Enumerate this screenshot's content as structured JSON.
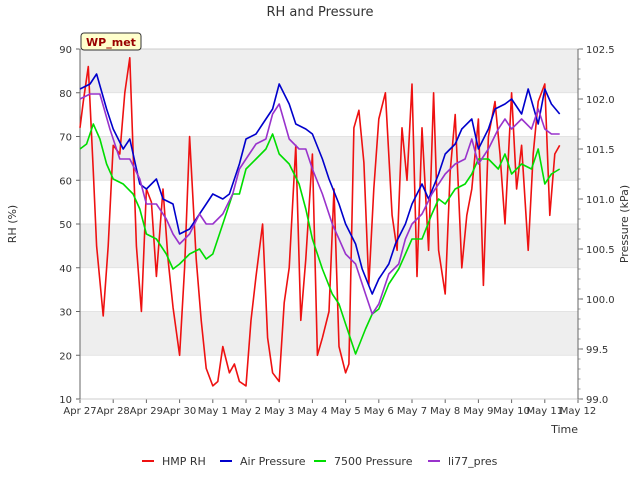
{
  "chart_data": {
    "type": "line",
    "title": "RH and Pressure",
    "xlabel": "Time",
    "ylabel": "RH (%)",
    "y2label": "Pressure (kPa)",
    "station_label": "WP_met",
    "x_ticks": [
      "Apr 27",
      "Apr 28",
      "Apr 29",
      "Apr 30",
      "May 1",
      "May 2",
      "May 3",
      "May 4",
      "May 5",
      "May 6",
      "May 7",
      "May 8",
      "May 9",
      "May 10",
      "May 11",
      "May 12"
    ],
    "xlim": [
      0,
      15
    ],
    "ylim": [
      10,
      90
    ],
    "y_ticks": [
      10,
      20,
      30,
      40,
      50,
      60,
      70,
      80,
      90
    ],
    "y2lim": [
      99.0,
      102.5
    ],
    "y2_ticks": [
      "99.0",
      "99.5",
      "100.0",
      "100.5",
      "101.0",
      "101.5",
      "102.0",
      "102.5"
    ],
    "grid": "horizontal bands",
    "legend_position": "bottom",
    "series": [
      {
        "name": "HMP RH",
        "axis": "left",
        "color": "#ee1111",
        "x": [
          0.0,
          0.1,
          0.25,
          0.4,
          0.5,
          0.7,
          0.85,
          1.0,
          1.2,
          1.35,
          1.5,
          1.7,
          1.85,
          2.0,
          2.15,
          2.3,
          2.5,
          2.65,
          2.8,
          3.0,
          3.15,
          3.3,
          3.5,
          3.65,
          3.8,
          4.0,
          4.15,
          4.3,
          4.5,
          4.65,
          4.8,
          5.0,
          5.15,
          5.3,
          5.5,
          5.65,
          5.8,
          6.0,
          6.15,
          6.3,
          6.5,
          6.65,
          6.8,
          7.0,
          7.15,
          7.3,
          7.5,
          7.65,
          7.8,
          8.0,
          8.1,
          8.25,
          8.4,
          8.55,
          8.7,
          8.85,
          9.0,
          9.2,
          9.4,
          9.55,
          9.7,
          9.85,
          10.0,
          10.15,
          10.3,
          10.5,
          10.65,
          10.8,
          11.0,
          11.15,
          11.3,
          11.5,
          11.65,
          11.8,
          12.0,
          12.15,
          12.3,
          12.5,
          12.65,
          12.8,
          13.0,
          13.15,
          13.3,
          13.5,
          13.65,
          13.8,
          14.0,
          14.15,
          14.3,
          14.45
        ],
        "y": [
          72,
          78,
          86,
          62,
          45,
          29,
          45,
          68,
          66,
          80,
          88,
          45,
          30,
          58,
          55,
          38,
          58,
          42,
          31,
          20,
          40,
          70,
          42,
          28,
          17,
          13,
          14,
          22,
          16,
          18,
          14,
          13,
          28,
          38,
          50,
          24,
          16,
          14,
          32,
          40,
          68,
          28,
          42,
          66,
          20,
          24,
          30,
          58,
          22,
          16,
          18,
          72,
          76,
          64,
          36,
          58,
          74,
          80,
          52,
          44,
          72,
          60,
          82,
          38,
          72,
          44,
          80,
          44,
          34,
          62,
          75,
          40,
          52,
          58,
          74,
          36,
          70,
          78,
          66,
          50,
          80,
          58,
          68,
          44,
          66,
          78,
          82,
          52,
          66,
          68
        ]
      },
      {
        "name": "Air Pressure",
        "axis": "right",
        "color": "#0000cc",
        "x": [
          0.0,
          0.3,
          0.5,
          0.8,
          1.0,
          1.3,
          1.5,
          1.8,
          2.0,
          2.3,
          2.5,
          2.8,
          3.0,
          3.3,
          3.5,
          3.8,
          4.0,
          4.3,
          4.5,
          4.8,
          5.0,
          5.3,
          5.5,
          5.8,
          6.0,
          6.3,
          6.5,
          6.8,
          7.0,
          7.3,
          7.5,
          7.8,
          8.0,
          8.3,
          8.5,
          8.8,
          9.0,
          9.3,
          9.5,
          9.8,
          10.0,
          10.3,
          10.5,
          10.8,
          11.0,
          11.3,
          11.5,
          11.8,
          12.0,
          12.3,
          12.5,
          12.8,
          13.0,
          13.3,
          13.5,
          13.8,
          14.0,
          14.2,
          14.45
        ],
        "y": [
          102.1,
          102.15,
          102.25,
          101.9,
          101.7,
          101.5,
          101.6,
          101.15,
          101.1,
          101.2,
          101.0,
          100.95,
          100.65,
          100.7,
          100.8,
          100.95,
          101.05,
          101.0,
          101.05,
          101.35,
          101.6,
          101.65,
          101.75,
          101.9,
          102.15,
          101.95,
          101.75,
          101.7,
          101.65,
          101.4,
          101.2,
          100.95,
          100.75,
          100.55,
          100.3,
          100.05,
          100.2,
          100.35,
          100.55,
          100.75,
          100.95,
          101.15,
          101.0,
          101.25,
          101.45,
          101.55,
          101.7,
          101.8,
          101.5,
          101.7,
          101.9,
          101.95,
          102.0,
          101.85,
          102.1,
          101.75,
          102.1,
          101.95,
          101.85
        ]
      },
      {
        "name": "7500 Pressure",
        "axis": "right",
        "color": "#00dd00",
        "x": [
          0.0,
          0.2,
          0.4,
          0.6,
          0.8,
          1.0,
          1.3,
          1.6,
          1.8,
          2.0,
          2.3,
          2.6,
          2.8,
          3.0,
          3.3,
          3.6,
          3.8,
          4.0,
          4.3,
          4.6,
          4.8,
          5.0,
          5.3,
          5.6,
          5.8,
          6.0,
          6.3,
          6.6,
          6.8,
          7.0,
          7.3,
          7.6,
          7.8,
          8.0,
          8.3,
          8.6,
          8.8,
          9.0,
          9.3,
          9.6,
          9.8,
          10.0,
          10.3,
          10.6,
          10.8,
          11.0,
          11.3,
          11.6,
          11.8,
          12.0,
          12.3,
          12.6,
          12.8,
          13.0,
          13.3,
          13.6,
          13.8,
          14.0,
          14.2,
          14.45
        ],
        "y": [
          101.5,
          101.55,
          101.75,
          101.6,
          101.35,
          101.2,
          101.15,
          101.05,
          100.9,
          100.65,
          100.6,
          100.45,
          100.3,
          100.35,
          100.45,
          100.5,
          100.4,
          100.45,
          100.75,
          101.05,
          101.05,
          101.3,
          101.4,
          101.5,
          101.65,
          101.45,
          101.35,
          101.15,
          100.9,
          100.6,
          100.3,
          100.05,
          99.95,
          99.75,
          99.45,
          99.7,
          99.85,
          99.9,
          100.15,
          100.3,
          100.45,
          100.6,
          100.6,
          100.85,
          101.0,
          100.95,
          101.1,
          101.15,
          101.25,
          101.4,
          101.4,
          101.3,
          101.45,
          101.25,
          101.35,
          101.3,
          101.5,
          101.15,
          101.25,
          101.3
        ]
      },
      {
        "name": "li77_pres",
        "axis": "right",
        "color": "#9933cc",
        "x": [
          0.0,
          0.3,
          0.6,
          0.9,
          1.2,
          1.5,
          1.8,
          2.0,
          2.3,
          2.6,
          2.8,
          3.0,
          3.3,
          3.6,
          3.8,
          4.0,
          4.3,
          4.6,
          4.8,
          5.0,
          5.3,
          5.6,
          5.8,
          6.0,
          6.3,
          6.6,
          6.8,
          7.0,
          7.3,
          7.6,
          7.8,
          8.0,
          8.3,
          8.6,
          8.8,
          9.0,
          9.3,
          9.6,
          9.8,
          10.0,
          10.3,
          10.6,
          10.8,
          11.0,
          11.3,
          11.6,
          11.8,
          12.0,
          12.3,
          12.6,
          12.8,
          13.0,
          13.3,
          13.6,
          13.8,
          14.0,
          14.2,
          14.45
        ],
        "y": [
          102.0,
          102.05,
          102.05,
          101.7,
          101.4,
          101.4,
          101.2,
          100.95,
          100.95,
          100.8,
          100.65,
          100.55,
          100.65,
          100.85,
          100.75,
          100.75,
          100.85,
          101.05,
          101.3,
          101.4,
          101.55,
          101.6,
          101.85,
          101.95,
          101.6,
          101.5,
          101.5,
          101.3,
          101.05,
          100.75,
          100.6,
          100.45,
          100.35,
          100.05,
          99.85,
          99.95,
          100.25,
          100.35,
          100.6,
          100.75,
          100.85,
          101.05,
          101.15,
          101.25,
          101.35,
          101.4,
          101.6,
          101.35,
          101.5,
          101.7,
          101.8,
          101.7,
          101.8,
          101.7,
          101.9,
          101.7,
          101.65,
          101.65
        ]
      }
    ]
  }
}
